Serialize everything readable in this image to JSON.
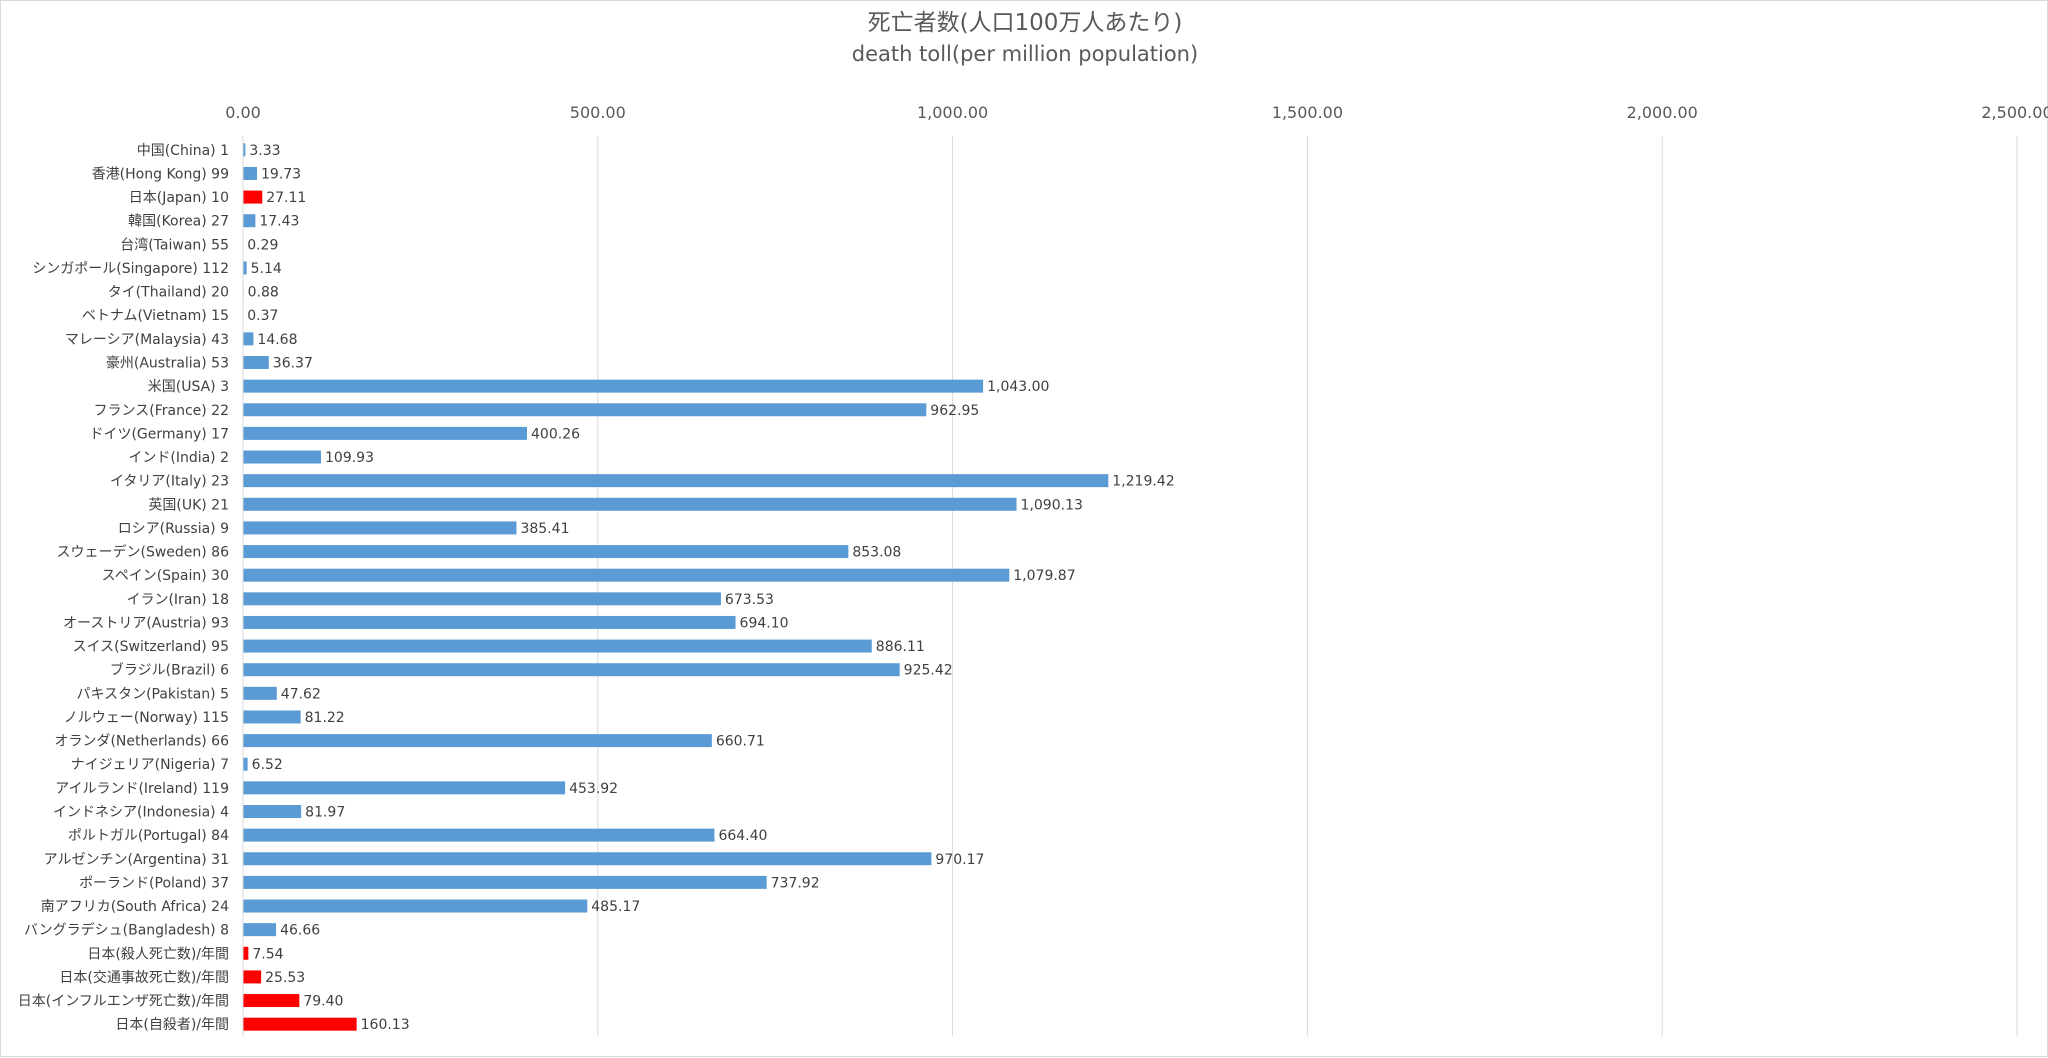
{
  "chart_data": {
    "type": "bar",
    "orientation": "horizontal",
    "title": "死亡者数(人口100万人あたり)",
    "subtitle": "death toll(per million population)",
    "xlim": [
      0,
      2500
    ],
    "x_ticks": [
      0,
      500,
      1000,
      1500,
      2000,
      2500
    ],
    "x_tick_labels": [
      "0.00",
      "500.00",
      "1,000.00",
      "1,500.00",
      "2,000.00",
      "2,500.00"
    ],
    "x_axis_position": "top",
    "grid": true,
    "legend": "none",
    "colors": {
      "default": "#5b9bd5",
      "highlight": "#ff0000"
    },
    "categories": [
      "中国(China) 1",
      "香港(Hong Kong) 99",
      "日本(Japan) 10",
      "韓国(Korea) 27",
      "台湾(Taiwan) 55",
      "シンガポール(Singapore) 112",
      "タイ(Thailand) 20",
      "ベトナム(Vietnam) 15",
      "マレーシア(Malaysia) 43",
      "豪州(Australia) 53",
      "米国(USA) 3",
      "フランス(France) 22",
      "ドイツ(Germany) 17",
      "インド(India) 2",
      "イタリア(Italy) 23",
      "英国(UK) 21",
      "ロシア(Russia) 9",
      "スウェーデン(Sweden) 86",
      "スペイン(Spain) 30",
      "イラン(Iran) 18",
      "オーストリア(Austria) 93",
      "スイス(Switzerland) 95",
      "ブラジル(Brazil) 6",
      "パキスタン(Pakistan) 5",
      "ノルウェー(Norway) 115",
      "オランダ(Netherlands) 66",
      "ナイジェリア(Nigeria) 7",
      "アイルランド(Ireland) 119",
      "インドネシア(Indonesia) 4",
      "ポルトガル(Portugal) 84",
      "アルゼンチン(Argentina) 31",
      "ポーランド(Poland) 37",
      "南アフリカ(South Africa) 24",
      "バングラデシュ(Bangladesh) 8",
      "日本(殺人死亡数)/年間",
      "日本(交通事故死亡数)/年間",
      "日本(インフルエンザ死亡数)/年間",
      "日本(自殺者)/年間"
    ],
    "values": [
      3.33,
      19.73,
      27.11,
      17.43,
      0.29,
      5.14,
      0.88,
      0.37,
      14.68,
      36.37,
      1043.0,
      962.95,
      400.26,
      109.93,
      1219.42,
      1090.13,
      385.41,
      853.08,
      1079.87,
      673.53,
      694.1,
      886.11,
      925.42,
      47.62,
      81.22,
      660.71,
      6.52,
      453.92,
      81.97,
      664.4,
      970.17,
      737.92,
      485.17,
      46.66,
      7.54,
      25.53,
      79.4,
      160.13
    ],
    "value_labels": [
      "3.33",
      "19.73",
      "27.11",
      "17.43",
      "0.29",
      "5.14",
      "0.88",
      "0.37",
      "14.68",
      "36.37",
      "1,043.00",
      "962.95",
      "400.26",
      "109.93",
      "1,219.42",
      "1,090.13",
      "385.41",
      "853.08",
      "1,079.87",
      "673.53",
      "694.10",
      "886.11",
      "925.42",
      "47.62",
      "81.22",
      "660.71",
      "6.52",
      "453.92",
      "81.97",
      "664.40",
      "970.17",
      "737.92",
      "485.17",
      "46.66",
      "7.54",
      "25.53",
      "79.40",
      "160.13"
    ],
    "highlighted": [
      2,
      34,
      35,
      36,
      37
    ]
  }
}
